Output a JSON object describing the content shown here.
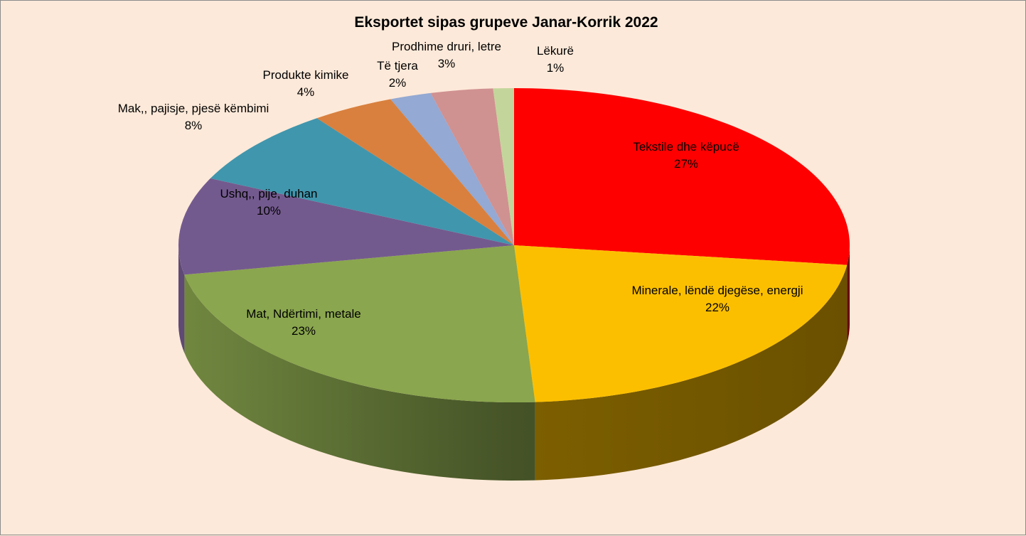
{
  "chart_data": {
    "type": "pie",
    "title": "Eksportet sipas grupeve Janar-Korrik 2022",
    "value_unit": "%",
    "slices": [
      {
        "label": "Tekstile dhe këpucë",
        "value": 27,
        "value_label": "27%",
        "color": "#ff0000"
      },
      {
        "label": "Minerale, lëndë djegëse, energji",
        "value": 22,
        "value_label": "22%",
        "color": "#fcbf00"
      },
      {
        "label": "Mat, Ndërtimi, metale",
        "value": 23,
        "value_label": "23%",
        "color": "#8aa64e"
      },
      {
        "label": "Ushq,, pije, duhan",
        "value": 10,
        "value_label": "10%",
        "color": "#735a8e"
      },
      {
        "label": "Mak,, pajisje, pjesë këmbimi",
        "value": 8,
        "value_label": "8%",
        "color": "#4096ad"
      },
      {
        "label": "Produkte kimike",
        "value": 4,
        "value_label": "4%",
        "color": "#d9803e"
      },
      {
        "label": "Të tjera",
        "value": 2,
        "value_label": "2%",
        "color": "#94a9d3"
      },
      {
        "label": "Prodhime druri, letre",
        "value": 3,
        "value_label": "3%",
        "color": "#d09191"
      },
      {
        "label": "Lëkurë",
        "value": 1,
        "value_label": "1%",
        "color": "#c3d59b"
      }
    ]
  }
}
